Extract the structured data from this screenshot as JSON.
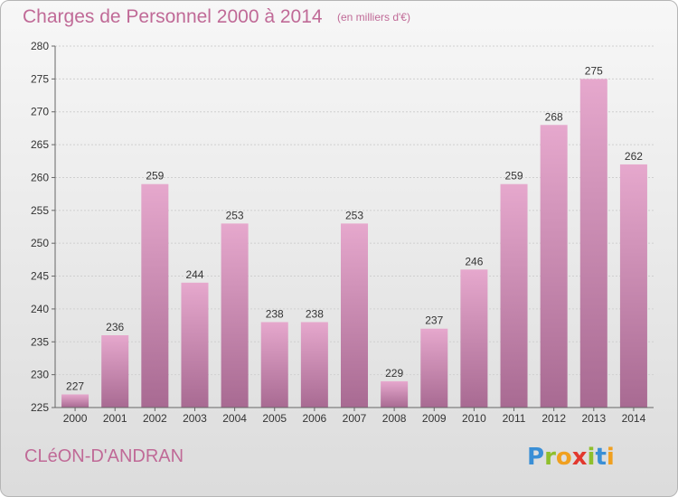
{
  "header": {
    "title": "Charges de Personnel 2000 à 2014",
    "subtitle": "(en milliers d'€)"
  },
  "footer": {
    "commune": "CLéON-D'ANDRAN",
    "logo_letters": [
      {
        "ch": "P",
        "color": "#3a8fd6"
      },
      {
        "ch": "r",
        "color": "#8fbf2c"
      },
      {
        "ch": "o",
        "color": "#f0a020"
      },
      {
        "ch": "x",
        "color": "#e2382e"
      },
      {
        "ch": "i",
        "color": "#8fbf2c"
      },
      {
        "ch": "t",
        "color": "#3a8fd6"
      },
      {
        "ch": "i",
        "color": "#f0a020"
      }
    ]
  },
  "chart_data": {
    "type": "bar",
    "title": "Charges de Personnel 2000 à 2014",
    "subtitle": "(en milliers d'€)",
    "categories": [
      "2000",
      "2001",
      "2002",
      "2003",
      "2004",
      "2005",
      "2006",
      "2007",
      "2008",
      "2009",
      "2010",
      "2011",
      "2012",
      "2013",
      "2014"
    ],
    "values": [
      227,
      236,
      259,
      244,
      253,
      238,
      238,
      253,
      229,
      237,
      246,
      259,
      268,
      275,
      262
    ],
    "ylim": [
      225,
      280
    ],
    "yticks": [
      225,
      230,
      235,
      240,
      245,
      250,
      255,
      260,
      265,
      270,
      275,
      280
    ],
    "grid": true,
    "bar_color_top": "#e6a8cd",
    "bar_color_bottom": "#a86a92",
    "label_color": "#333333"
  }
}
